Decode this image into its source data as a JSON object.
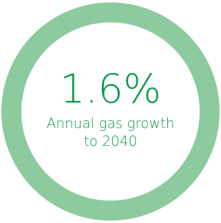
{
  "stat": {
    "value": "1.6%",
    "caption": "Annual gas growth to 2040"
  },
  "colors": {
    "ring": "#8dcb9f",
    "text": "#0a9a43",
    "background": "#ffffff"
  }
}
